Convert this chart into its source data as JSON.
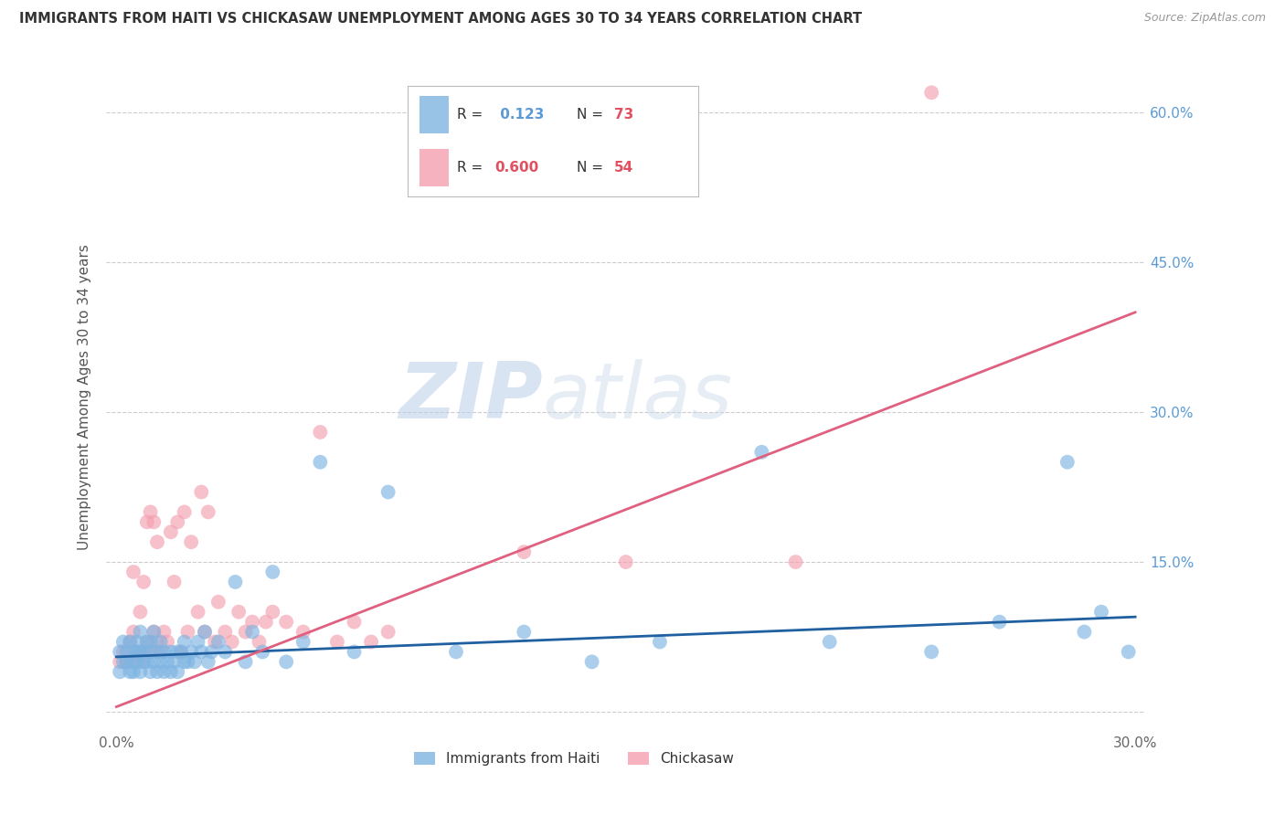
{
  "title": "IMMIGRANTS FROM HAITI VS CHICKASAW UNEMPLOYMENT AMONG AGES 30 TO 34 YEARS CORRELATION CHART",
  "source": "Source: ZipAtlas.com",
  "ylabel": "Unemployment Among Ages 30 to 34 years",
  "xlim": [
    0.0,
    0.3
  ],
  "ylim": [
    -0.02,
    0.65
  ],
  "x_ticks": [
    0.0,
    0.05,
    0.1,
    0.15,
    0.2,
    0.25,
    0.3
  ],
  "x_tick_labels": [
    "0.0%",
    "",
    "",
    "",
    "",
    "",
    "30.0%"
  ],
  "y_ticks": [
    0.0,
    0.15,
    0.3,
    0.45,
    0.6
  ],
  "y_tick_labels": [
    "",
    "15.0%",
    "30.0%",
    "45.0%",
    "60.0%"
  ],
  "grid_color": "#cccccc",
  "background_color": "#ffffff",
  "watermark_zip": "ZIP",
  "watermark_atlas": "atlas",
  "haiti_color": "#7EB4E2",
  "chickasaw_color": "#F4A0B0",
  "haiti_R": 0.123,
  "haiti_N": 73,
  "chickasaw_R": 0.6,
  "chickasaw_N": 54,
  "haiti_line_color": "#2060A0",
  "chickasaw_line_color": "#E06080",
  "legend_label_haiti": "Immigrants from Haiti",
  "legend_label_chickasaw": "Chickasaw",
  "haiti_scatter_x": [
    0.001,
    0.001,
    0.002,
    0.002,
    0.003,
    0.003,
    0.004,
    0.004,
    0.005,
    0.005,
    0.005,
    0.006,
    0.006,
    0.006,
    0.007,
    0.007,
    0.007,
    0.008,
    0.008,
    0.009,
    0.009,
    0.01,
    0.01,
    0.01,
    0.011,
    0.011,
    0.012,
    0.012,
    0.013,
    0.013,
    0.014,
    0.014,
    0.015,
    0.016,
    0.016,
    0.017,
    0.018,
    0.018,
    0.019,
    0.02,
    0.02,
    0.021,
    0.022,
    0.023,
    0.024,
    0.025,
    0.026,
    0.027,
    0.028,
    0.03,
    0.032,
    0.035,
    0.038,
    0.04,
    0.043,
    0.046,
    0.05,
    0.055,
    0.06,
    0.07,
    0.08,
    0.1,
    0.12,
    0.14,
    0.16,
    0.19,
    0.21,
    0.24,
    0.26,
    0.28,
    0.285,
    0.29,
    0.298
  ],
  "haiti_scatter_y": [
    0.04,
    0.06,
    0.05,
    0.07,
    0.05,
    0.06,
    0.04,
    0.07,
    0.05,
    0.06,
    0.04,
    0.05,
    0.07,
    0.06,
    0.04,
    0.06,
    0.08,
    0.05,
    0.06,
    0.05,
    0.07,
    0.04,
    0.06,
    0.07,
    0.05,
    0.08,
    0.06,
    0.04,
    0.05,
    0.07,
    0.06,
    0.04,
    0.05,
    0.06,
    0.04,
    0.05,
    0.06,
    0.04,
    0.06,
    0.05,
    0.07,
    0.05,
    0.06,
    0.05,
    0.07,
    0.06,
    0.08,
    0.05,
    0.06,
    0.07,
    0.06,
    0.13,
    0.05,
    0.08,
    0.06,
    0.14,
    0.05,
    0.07,
    0.25,
    0.06,
    0.22,
    0.06,
    0.08,
    0.05,
    0.07,
    0.26,
    0.07,
    0.06,
    0.09,
    0.25,
    0.08,
    0.1,
    0.06
  ],
  "chickasaw_scatter_x": [
    0.001,
    0.002,
    0.003,
    0.004,
    0.005,
    0.005,
    0.006,
    0.007,
    0.007,
    0.008,
    0.008,
    0.009,
    0.009,
    0.01,
    0.01,
    0.011,
    0.011,
    0.012,
    0.012,
    0.013,
    0.014,
    0.015,
    0.016,
    0.017,
    0.018,
    0.019,
    0.02,
    0.021,
    0.022,
    0.024,
    0.025,
    0.026,
    0.027,
    0.029,
    0.03,
    0.032,
    0.034,
    0.036,
    0.038,
    0.04,
    0.042,
    0.044,
    0.046,
    0.05,
    0.055,
    0.06,
    0.065,
    0.07,
    0.075,
    0.08,
    0.12,
    0.15,
    0.2,
    0.24
  ],
  "chickasaw_scatter_y": [
    0.05,
    0.06,
    0.05,
    0.07,
    0.08,
    0.14,
    0.06,
    0.05,
    0.1,
    0.06,
    0.13,
    0.07,
    0.19,
    0.06,
    0.2,
    0.08,
    0.19,
    0.07,
    0.17,
    0.06,
    0.08,
    0.07,
    0.18,
    0.13,
    0.19,
    0.06,
    0.2,
    0.08,
    0.17,
    0.1,
    0.22,
    0.08,
    0.2,
    0.07,
    0.11,
    0.08,
    0.07,
    0.1,
    0.08,
    0.09,
    0.07,
    0.09,
    0.1,
    0.09,
    0.08,
    0.28,
    0.07,
    0.09,
    0.07,
    0.08,
    0.16,
    0.15,
    0.15,
    0.62
  ]
}
